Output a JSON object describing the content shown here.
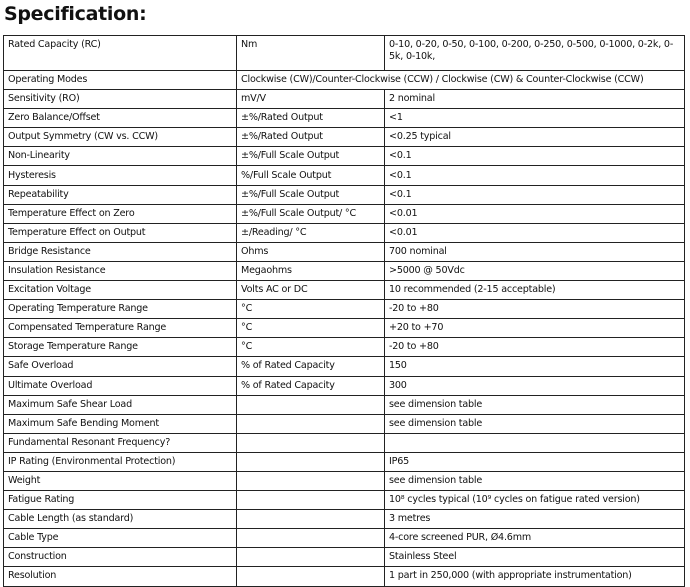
{
  "title": "Specification:",
  "rows": [
    [
      "Rated Capacity (RC)",
      "Nm",
      "0-10, 0-20, 0-50, 0-100, 0-200, 0-250, 0-500, 0-1000, 0-2k, 0-5k, 0-10k,"
    ],
    [
      "Operating Modes",
      "Clockwise (CW)/Counter-Clockwise (CCW) / Clockwise (CW) & Counter-Clockwise (CCW)"
    ],
    [
      "Sensitivity (RO)",
      "mV/V",
      "2 nominal"
    ],
    [
      "Zero Balance/Offset",
      "±%/Rated Output",
      "<1"
    ],
    [
      "Output Symmetry (CW vs. CCW)",
      "±%/Rated Output",
      "<0.25 typical"
    ],
    [
      "Non-Linearity",
      "±%/Full Scale Output",
      "<0.1"
    ],
    [
      "Hysteresis",
      "%/Full Scale Output",
      "<0.1"
    ],
    [
      "Repeatability",
      "±%/Full Scale Output",
      "<0.1"
    ],
    [
      "Temperature Effect on Zero",
      "±%/Full Scale Output/ °C",
      "<0.01"
    ],
    [
      "Temperature Effect on Output",
      "±/Reading/ °C",
      "<0.01"
    ],
    [
      "Bridge Resistance",
      "Ohms",
      "700 nominal"
    ],
    [
      "Insulation Resistance",
      "Megaohms",
      ">5000 @ 50Vdc"
    ],
    [
      "Excitation Voltage",
      "Volts AC or DC",
      "10 recommended (2-15 acceptable)"
    ],
    [
      "Operating Temperature Range",
      "°C",
      "-20 to +80"
    ],
    [
      "Compensated Temperature Range",
      "°C",
      "+20 to +70"
    ],
    [
      "Storage Temperature Range",
      "°C",
      "-20 to +80"
    ],
    [
      "Safe Overload",
      "% of Rated Capacity",
      "150"
    ],
    [
      "Ultimate Overload",
      "% of Rated Capacity",
      "300"
    ],
    [
      "Maximum Safe Shear Load",
      "",
      "see dimension table"
    ],
    [
      "Maximum Safe Bending Moment",
      "",
      "see dimension table"
    ],
    [
      "Fundamental Resonant Frequency?",
      "",
      ""
    ],
    [
      "IP Rating (Environmental Protection)",
      "",
      "IP65"
    ],
    [
      "Weight",
      "",
      "see dimension table"
    ],
    [
      "Fatigue Rating",
      "",
      "10⁸ cycles typical (10⁹ cycles on fatigue rated version)"
    ],
    [
      "Cable Length (as standard)",
      "",
      "3 metres"
    ],
    [
      "Cable Type",
      "",
      "4-core screened PUR, Ø4.6mm"
    ],
    [
      "Construction",
      "",
      "Stainless Steel"
    ],
    [
      "Resolution",
      "",
      "1 part in 250,000 (with appropriate instrumentation)"
    ]
  ]
}
